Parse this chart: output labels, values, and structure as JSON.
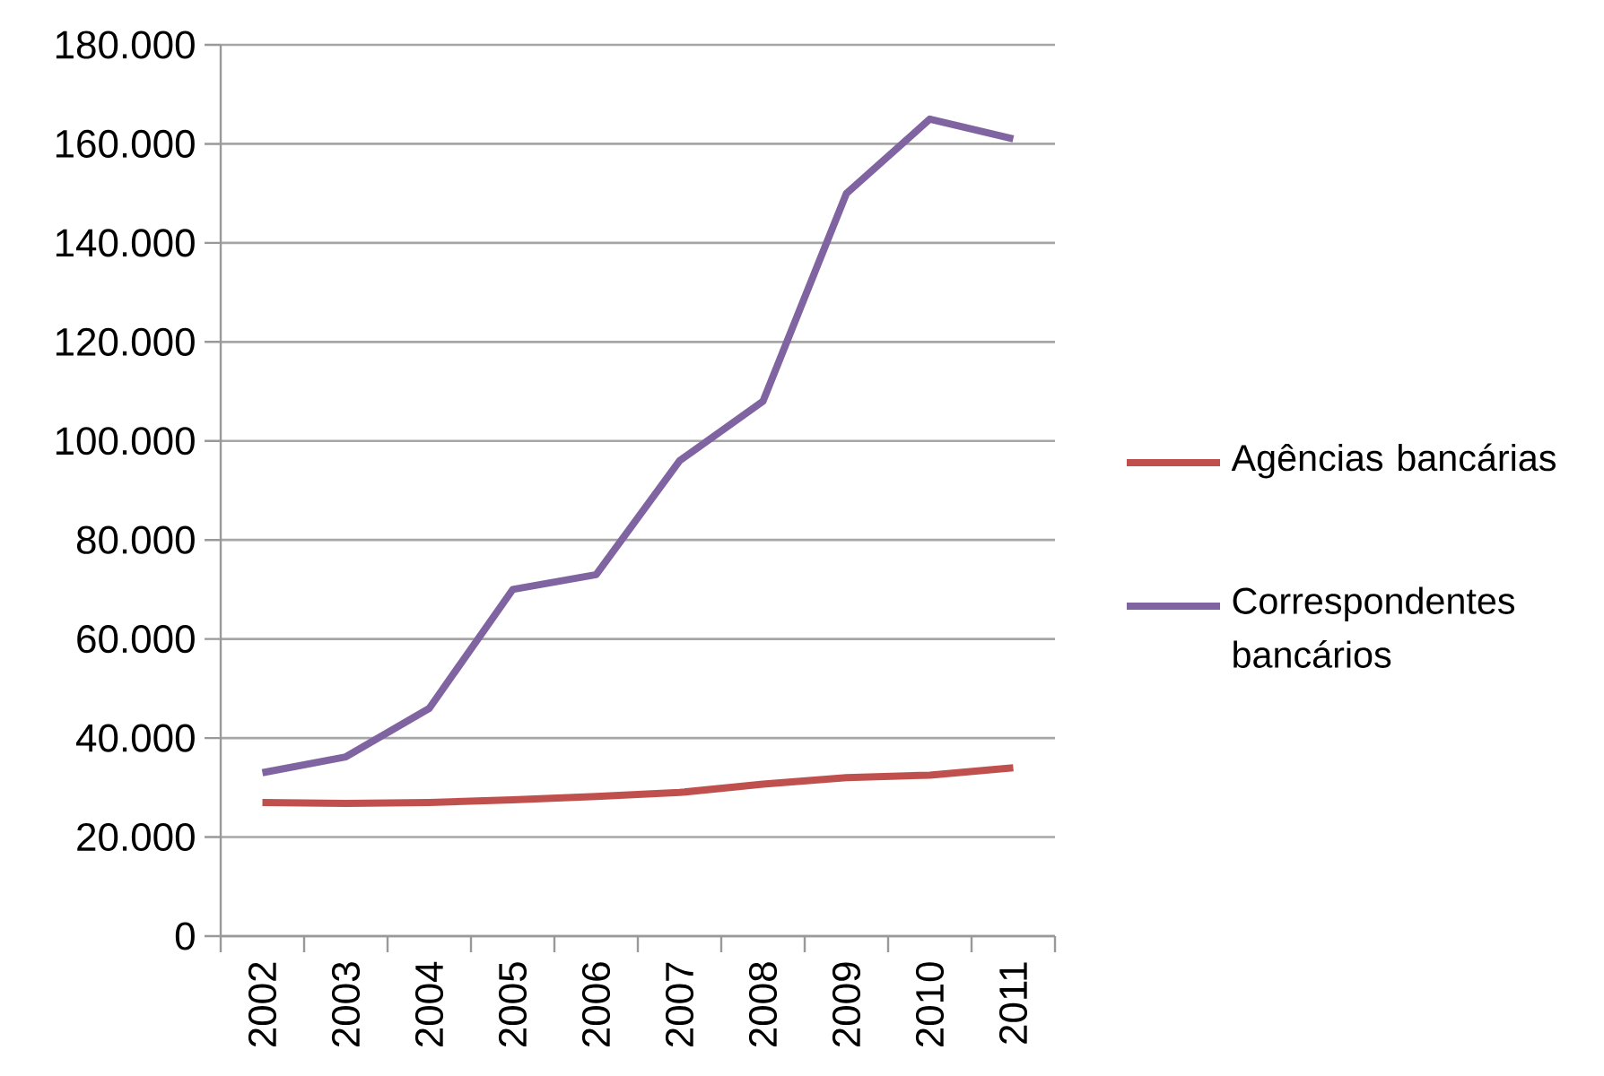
{
  "chart_data": {
    "type": "line",
    "categories": [
      "2002",
      "2003",
      "2004",
      "2005",
      "2006",
      "2007",
      "2008",
      "2009",
      "2010",
      "2011"
    ],
    "series": [
      {
        "name": "Agências bancárias",
        "color": "#c0504d",
        "values": [
          27000,
          26800,
          27000,
          27500,
          28200,
          29000,
          30700,
          32000,
          32500,
          34000
        ]
      },
      {
        "name": "Correspondentes bancários",
        "color": "#8064a2",
        "values": [
          33000,
          36200,
          46000,
          70000,
          73000,
          96000,
          108000,
          150000,
          165000,
          161000
        ]
      }
    ],
    "ylim": [
      0,
      180000
    ],
    "yticks": [
      0,
      {
        "value": 20000,
        "label": "20.000"
      },
      {
        "value": 40000,
        "label": "40.000"
      },
      {
        "value": 60000,
        "label": "60.000"
      },
      {
        "value": 80000,
        "label": "80.000"
      },
      {
        "value": 100000,
        "label": "100.000"
      },
      {
        "value": 120000,
        "label": "120.000"
      },
      {
        "value": 140000,
        "label": "140.000"
      },
      {
        "value": 160000,
        "label": "160.000"
      },
      {
        "value": 180000,
        "label": "180.000"
      }
    ],
    "grid": "y",
    "legend": "right",
    "marker": "none",
    "line_style": "solid"
  }
}
